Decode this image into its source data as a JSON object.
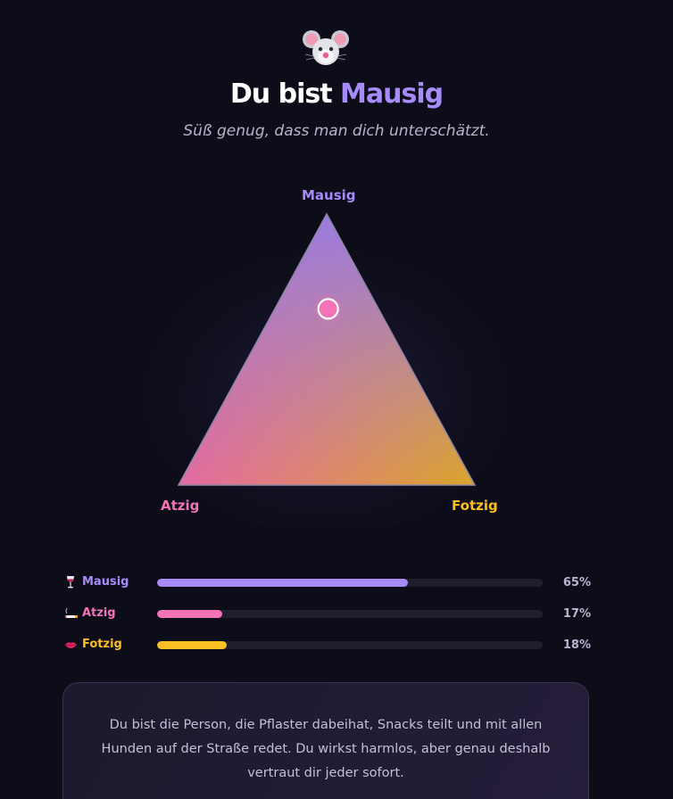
{
  "header": {
    "emoji_name": "mouse-face-icon",
    "title_prefix": "Du bist ",
    "title_accent": "Mausig",
    "subtitle": "Süß genug, dass man dich unterschätzt."
  },
  "triangle": {
    "top_label": "Mausig",
    "left_label": "Atzig",
    "right_label": "Fotzig",
    "marker": {
      "mausig": 0.65,
      "atzig": 0.17,
      "fotzig": 0.18
    }
  },
  "colors": {
    "mausig": "#a78bfa",
    "atzig": "#f472b6",
    "fotzig": "#fbbf24",
    "background": "#0d0d1a"
  },
  "bars": [
    {
      "icon": "wine-glass-icon",
      "label": "Mausig",
      "value": 0.65,
      "value_text": "65%"
    },
    {
      "icon": "cigarette-icon",
      "label": "Atzig",
      "value": 0.17,
      "value_text": "17%"
    },
    {
      "icon": "lips-icon",
      "label": "Fotzig",
      "value": 0.18,
      "value_text": "18%"
    }
  ],
  "description": "Du bist die Person, die Pflaster dabeihat, Snacks teilt und mit allen Hunden auf der Straße redet. Du wirkst harmlos, aber genau deshalb vertraut dir jeder sofort."
}
